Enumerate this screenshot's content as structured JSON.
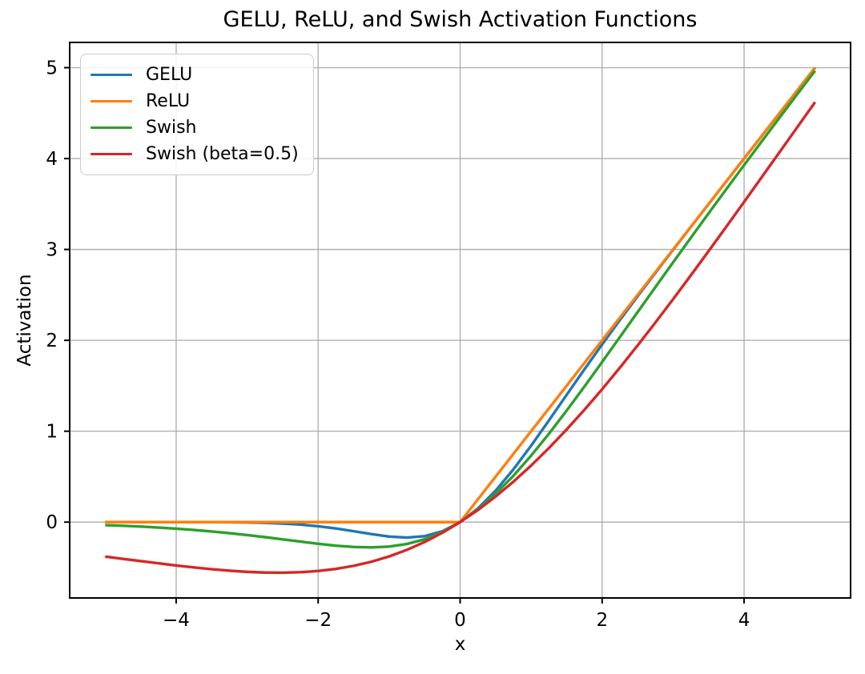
{
  "chart_data": {
    "type": "line",
    "title": "GELU, ReLU, and Swish Activation Functions",
    "xlabel": "x",
    "ylabel": "Activation",
    "xlim": [
      -5.5,
      5.5
    ],
    "ylim": [
      -0.8346,
      5.2778
    ],
    "xticks": [
      -4,
      -2,
      0,
      2,
      4
    ],
    "yticks": [
      0,
      1,
      2,
      3,
      4,
      5
    ],
    "grid": true,
    "legend_position": "upper-left",
    "colors": {
      "grid": "#b0b0b0",
      "spine": "#000000",
      "text": "#000000",
      "background": "#ffffff"
    },
    "x": [
      -5,
      -4.75,
      -4.5,
      -4.25,
      -4,
      -3.75,
      -3.5,
      -3.25,
      -3,
      -2.75,
      -2.5,
      -2.25,
      -2,
      -1.75,
      -1.5,
      -1.25,
      -1,
      -0.75,
      -0.5,
      -0.25,
      0,
      0.25,
      0.5,
      0.75,
      1,
      1.25,
      1.5,
      1.75,
      2,
      2.25,
      2.5,
      2.75,
      3,
      3.25,
      3.5,
      3.75,
      4,
      4.25,
      4.5,
      4.75,
      5
    ],
    "series": [
      {
        "name": "GELU",
        "color": "#1f77b4",
        "values": [
          0.0,
          0.0,
          0.0,
          0.0,
          -0.0001,
          -0.0003,
          -0.0008,
          -0.0019,
          -0.004,
          -0.0082,
          -0.0155,
          -0.0275,
          -0.0455,
          -0.0701,
          -0.1002,
          -0.1321,
          -0.1587,
          -0.17,
          -0.1543,
          -0.1003,
          0.0,
          0.1497,
          0.3457,
          0.58,
          0.8413,
          1.1179,
          1.3998,
          1.6799,
          1.9545,
          2.2225,
          2.4845,
          2.7418,
          2.996,
          3.2481,
          3.4992,
          3.7497,
          3.9999,
          4.25,
          4.5,
          4.75,
          5.0
        ]
      },
      {
        "name": "ReLU",
        "color": "#ff7f0e",
        "values": [
          0,
          0,
          0,
          0,
          0,
          0,
          0,
          0,
          0,
          0,
          0,
          0,
          0,
          0,
          0,
          0,
          0,
          0,
          0,
          0,
          0,
          0.25,
          0.5,
          0.75,
          1,
          1.25,
          1.5,
          1.75,
          2,
          2.25,
          2.5,
          2.75,
          3,
          3.25,
          3.5,
          3.75,
          4,
          4.25,
          4.5,
          4.75,
          5
        ]
      },
      {
        "name": "Swish",
        "color": "#2ca02c",
        "values": [
          -0.0335,
          -0.0407,
          -0.0494,
          -0.0598,
          -0.0719,
          -0.0862,
          -0.1026,
          -0.1213,
          -0.1423,
          -0.1652,
          -0.1896,
          -0.2145,
          -0.2384,
          -0.2591,
          -0.2736,
          -0.2784,
          -0.2689,
          -0.2406,
          -0.1888,
          -0.1095,
          0.0,
          0.1405,
          0.3112,
          0.5094,
          0.7311,
          0.9716,
          1.2264,
          1.4909,
          1.7616,
          2.0355,
          2.3104,
          2.5848,
          2.8577,
          3.1287,
          3.3974,
          3.6638,
          3.9281,
          4.1902,
          4.4506,
          4.7093,
          4.9665
        ]
      },
      {
        "name": "Swish (beta=0.5)",
        "color": "#d62728",
        "values": [
          -0.3793,
          -0.4042,
          -0.4291,
          -0.4534,
          -0.4768,
          -0.4986,
          -0.5182,
          -0.5347,
          -0.5473,
          -0.555,
          -0.5568,
          -0.5514,
          -0.5379,
          -0.5149,
          -0.4812,
          -0.4358,
          -0.3775,
          -0.3055,
          -0.2189,
          -0.1172,
          0.0,
          0.1328,
          0.2811,
          0.4445,
          0.6225,
          0.8142,
          1.0188,
          1.2351,
          1.4621,
          1.6986,
          1.9433,
          2.195,
          2.4527,
          2.7153,
          2.9818,
          3.2514,
          3.5232,
          3.7966,
          4.0709,
          4.3458,
          4.6207
        ]
      }
    ]
  }
}
